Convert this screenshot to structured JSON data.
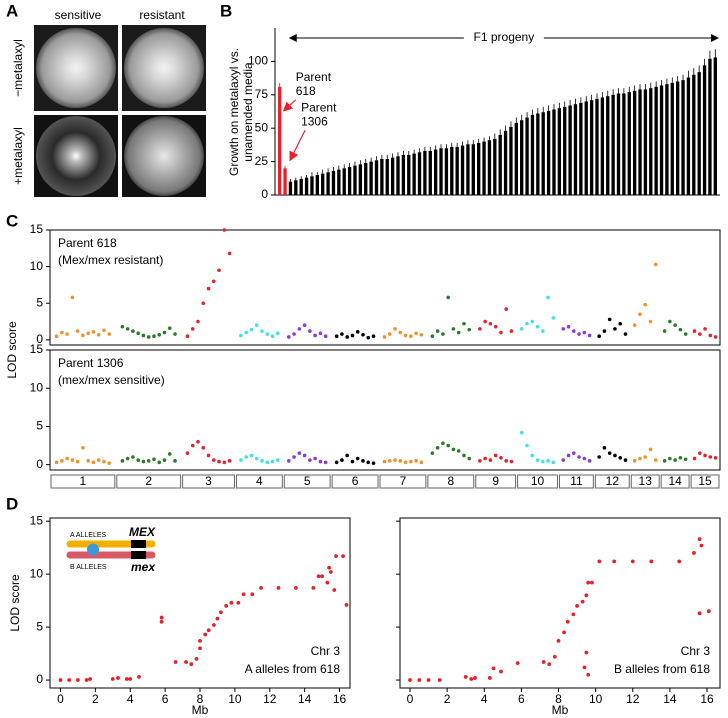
{
  "panel_a": {
    "panel": "A",
    "columns": [
      "sensitive",
      "resistant"
    ],
    "rows": [
      "−metalaxyl",
      "+metalaxyl"
    ]
  },
  "chart_data": [
    {
      "type": "bar",
      "panel": "B",
      "ylabel": [
        "Growth on metalaxyl vs.",
        "unamended media"
      ],
      "ylim": [
        0,
        125
      ],
      "yticks": [
        0,
        25,
        50,
        75,
        100
      ],
      "parents": {
        "color": "#e8202a",
        "labels": [
          [
            "Parent",
            "618"
          ],
          [
            "Parent",
            "1306"
          ]
        ],
        "values": [
          81,
          20
        ],
        "errors": [
          3,
          2
        ]
      },
      "progeny": {
        "label": "F1 progeny",
        "color": "#000000",
        "values": [
          10,
          11,
          12,
          13,
          14,
          15,
          16,
          17,
          18,
          19,
          20,
          21,
          22,
          23,
          24,
          25,
          26,
          27,
          27,
          28,
          29,
          30,
          30,
          31,
          32,
          33,
          33,
          34,
          35,
          35,
          36,
          36,
          37,
          38,
          38,
          39,
          40,
          41,
          42,
          45,
          48,
          51,
          54,
          56,
          58,
          60,
          61,
          62,
          63,
          64,
          65,
          66,
          67,
          68,
          69,
          70,
          71,
          72,
          73,
          74,
          75,
          76,
          76,
          77,
          78,
          79,
          79,
          80,
          81,
          82,
          83,
          84,
          85,
          86,
          88,
          90,
          92,
          97,
          102,
          103
        ],
        "errors": [
          2,
          2,
          2,
          2,
          3,
          2,
          3,
          3,
          3,
          3,
          3,
          3,
          3,
          3,
          3,
          3,
          3,
          3,
          3,
          3,
          3,
          3,
          3,
          3,
          3,
          3,
          3,
          3,
          3,
          3,
          3,
          3,
          3,
          3,
          3,
          3,
          3,
          3,
          4,
          4,
          4,
          4,
          4,
          4,
          4,
          4,
          4,
          4,
          4,
          4,
          4,
          4,
          4,
          4,
          4,
          4,
          4,
          4,
          4,
          4,
          4,
          4,
          4,
          4,
          4,
          4,
          4,
          4,
          4,
          4,
          4,
          4,
          4,
          4,
          5,
          5,
          5,
          5,
          6,
          6
        ]
      }
    },
    {
      "type": "manhattan",
      "panel": "C",
      "ylabel": "LOD score",
      "ylim": [
        -0.7,
        15
      ],
      "yticks": [
        0,
        5,
        10,
        15
      ],
      "chromosomes": [
        "1",
        "2",
        "3",
        "4",
        "5",
        "6",
        "7",
        "8",
        "9",
        "10",
        "11",
        "12",
        "13",
        "14",
        "15"
      ],
      "colors": [
        "#f0922a",
        "#2a7a2a",
        "#e8202a",
        "#40e0e8",
        "#8a3ad8",
        "#000000",
        "#f0922a",
        "#2a7a2a",
        "#e8202a",
        "#40e0e8",
        "#8a3ad8",
        "#000000",
        "#f0922a",
        "#2a7a2a",
        "#e8202a"
      ],
      "plots": [
        {
          "annotation": [
            "Parent 618",
            "(Mex/mex resistant)"
          ],
          "values": [
            [
              0.5,
              1,
              0.8,
              5.8,
              1.2,
              0.6,
              0.9,
              1.1,
              0.7,
              1.3,
              0.8
            ],
            [
              1.8,
              1.5,
              1.2,
              0.9,
              0.6,
              0.4,
              0.5,
              0.7,
              1,
              1.6,
              0.8
            ],
            [
              0.5,
              1.5,
              2.5,
              5,
              7,
              8,
              9.5,
              15,
              11.8
            ],
            [
              0.6,
              1,
              1.4,
              2,
              1.2,
              0.8,
              0.5,
              0.9
            ],
            [
              0.4,
              0.8,
              1.5,
              2,
              1.2,
              0.6,
              0.9,
              0.5
            ],
            [
              0.5,
              0.8,
              0.4,
              0.6,
              1.1,
              0.7,
              0.3,
              0.5
            ],
            [
              0.4,
              0.8,
              1.5,
              1,
              0.6,
              0.5,
              0.9,
              0.7
            ],
            [
              0.5,
              1.2,
              0.8,
              5.8,
              1.5,
              1,
              2.2,
              1.4
            ],
            [
              1.5,
              2.5,
              2.2,
              1.8,
              1,
              4.2,
              1.2
            ],
            [
              1.5,
              2.2,
              2.5,
              1.8,
              1.2,
              5.8,
              3
            ],
            [
              1.5,
              1.8,
              1.2,
              0.8,
              1,
              0.6
            ],
            [
              0.5,
              1.2,
              2.8,
              1.5,
              2.2,
              0.8
            ],
            [
              2,
              3.5,
              4.8,
              2.5,
              10.3
            ],
            [
              1.2,
              2.5,
              2,
              1.4,
              0.8
            ],
            [
              1.2,
              0.8,
              1.5,
              0.6,
              0.4
            ]
          ]
        },
        {
          "annotation": [
            "Parent 1306",
            "(mex/mex sensitive)"
          ],
          "values": [
            [
              0.3,
              0.5,
              0.8,
              0.6,
              0.4,
              2.2,
              0.5,
              0.3,
              0.6,
              0.4,
              0.2
            ],
            [
              0.5,
              0.8,
              1,
              0.6,
              0.4,
              0.5,
              0.7,
              0.3,
              0.6,
              1.4,
              0.5
            ],
            [
              1.5,
              2.5,
              3,
              2.2,
              1.2,
              0.6,
              0.4,
              0.3,
              0.5
            ],
            [
              0.6,
              1,
              1.2,
              0.8,
              0.5,
              0.3,
              0.4,
              0.6
            ],
            [
              0.5,
              1,
              1.5,
              1.2,
              0.6,
              0.8,
              0.4,
              0.3
            ],
            [
              0.3,
              0.6,
              1.2,
              0.4,
              0.8,
              0.5,
              0.3,
              0.2
            ],
            [
              0.4,
              0.5,
              0.6,
              0.5,
              0.3,
              0.4,
              0.5,
              0.3
            ],
            [
              1.5,
              2.2,
              2.8,
              2.5,
              2,
              1.8,
              1.2,
              0.8
            ],
            [
              0.5,
              0.8,
              0.6,
              1.2,
              0.9,
              0.5,
              0.4
            ],
            [
              4.2,
              2.5,
              1.2,
              0.6,
              0.4,
              0.5,
              0.3
            ],
            [
              0.6,
              1.2,
              1.5,
              1,
              0.8,
              0.5
            ],
            [
              1,
              2.2,
              1.5,
              1.2,
              0.9,
              0.6
            ],
            [
              0.5,
              0.8,
              1,
              2,
              0.6
            ],
            [
              0.5,
              0.8,
              0.6,
              0.9,
              0.7
            ],
            [
              0.8,
              1.5,
              1.2,
              1,
              0.9
            ]
          ]
        }
      ]
    },
    {
      "type": "scatter",
      "panel": "D",
      "ylabel": "LOD score",
      "xlabel": "Mb",
      "color": "#e8202a",
      "ylim": [
        -0.75,
        15.3
      ],
      "yticks": [
        0,
        5,
        10,
        15
      ],
      "xticks": [
        0,
        2,
        4,
        6,
        8,
        10,
        12,
        14,
        16
      ],
      "inset": {
        "a_alleles": "A ALLELES",
        "a_gene": "MEX",
        "b_alleles": "B ALLELES",
        "b_gene": "mex"
      },
      "plots": [
        {
          "xlim": [
            -0.6,
            16.6
          ],
          "annotation": [
            "Chr 3",
            "A alleles from 618"
          ],
          "x": [
            0,
            0.5,
            1,
            1.5,
            1.7,
            3,
            3.3,
            3.8,
            4,
            4.5,
            5.8,
            5.8,
            6.6,
            7.2,
            7.5,
            7.8,
            8,
            8,
            8.3,
            8.5,
            8.8,
            9,
            9.2,
            9.5,
            9.8,
            10.2,
            10.5,
            11,
            11.5,
            12.5,
            13.5,
            14.5,
            14.8,
            15,
            15.3,
            15.4,
            15.5,
            15.7,
            15.8,
            16.2,
            16.4
          ],
          "values": [
            0,
            0,
            0,
            0,
            0.1,
            0.1,
            0.2,
            0.1,
            0.1,
            0.3,
            5.5,
            5.9,
            1.7,
            1.7,
            1.5,
            2,
            3,
            3.7,
            4.3,
            4.7,
            5.2,
            5.8,
            6.4,
            7,
            7.3,
            7.3,
            8.1,
            8.1,
            8.7,
            8.7,
            8.7,
            8.7,
            9.8,
            9.8,
            9.2,
            10.6,
            10.2,
            8.5,
            11.7,
            11.7,
            7.1
          ]
        },
        {
          "xlim": [
            -0.54,
            16.7
          ],
          "annotation": [
            "Chr 3",
            "B alleles from 618"
          ],
          "x": [
            0,
            0.5,
            1,
            1.6,
            3,
            3.3,
            3.5,
            4.3,
            4.5,
            4.9,
            5.8,
            7.2,
            7.5,
            7.8,
            8,
            8.3,
            8.5,
            8.8,
            9,
            9.3,
            9.4,
            9.5,
            9.5,
            9.6,
            9.6,
            9.8,
            10.2,
            11,
            12,
            13,
            14.5,
            15.3,
            15.6,
            15.6,
            15.7,
            16.1
          ],
          "values": [
            0,
            0,
            0,
            0,
            0.3,
            0.1,
            0.2,
            0.2,
            1.1,
            0.8,
            1.6,
            1.7,
            1.5,
            2.2,
            3.7,
            4.5,
            5.5,
            6.2,
            7,
            7.4,
            1.2,
            8,
            2.6,
            9.2,
            0.5,
            9.2,
            11.2,
            11.2,
            11.2,
            11.2,
            11.2,
            12,
            13.3,
            6.3,
            12.7,
            6.5
          ]
        }
      ]
    }
  ]
}
